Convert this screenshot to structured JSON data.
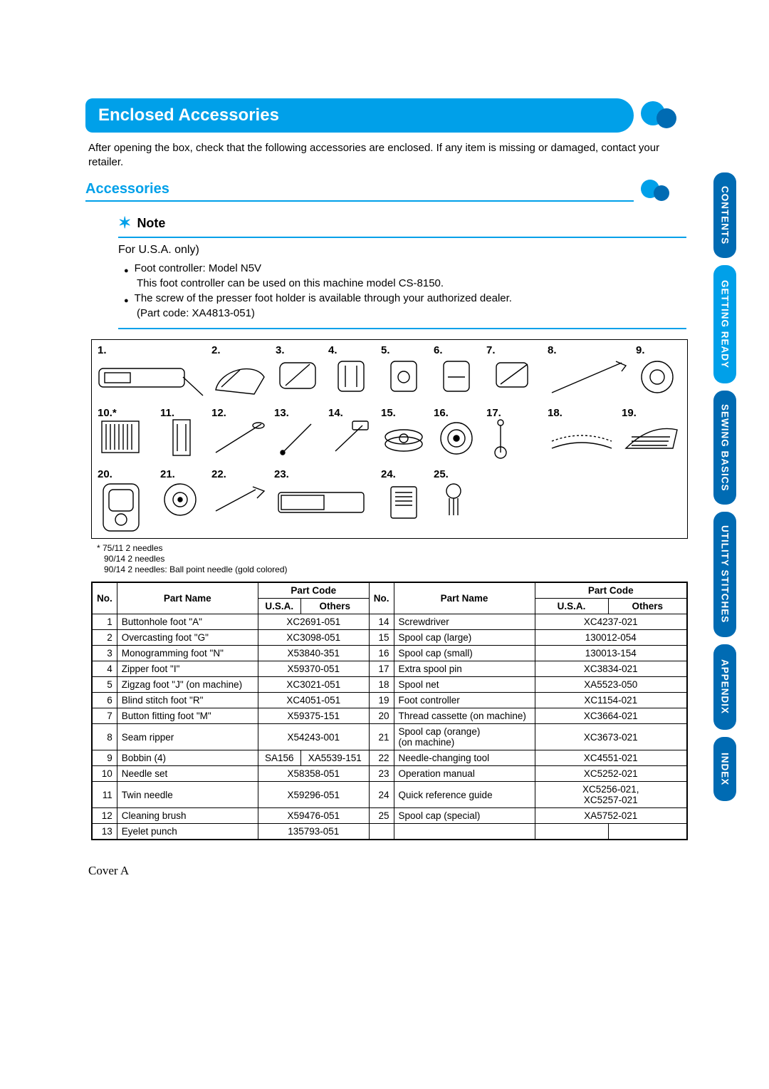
{
  "colors": {
    "accent": "#00a0e9",
    "accent_dark": "#006bb3",
    "text": "#000000",
    "bg": "#ffffff"
  },
  "heading": "Enclosed Accessories",
  "intro": "After opening the box, check that the following accessories are enclosed. If any item is missing or damaged, contact your retailer.",
  "subheading": "Accessories",
  "note": {
    "title": "Note",
    "usa_only": "For U.S.A. only)",
    "bullet1_line1": "Foot controller: Model N5V",
    "bullet1_line2": "This foot controller can be used on this machine model CS-8150.",
    "bullet2_line1": "The screw of the presser foot holder is available through your authorized dealer.",
    "bullet2_line2": "(Part code: XA4813-051)"
  },
  "illus": {
    "numbers_row1": [
      "1.",
      "2.",
      "3.",
      "4.",
      "5.",
      "6.",
      "7.",
      "8.",
      "9."
    ],
    "numbers_row2": [
      "10.*",
      "11.",
      "12.",
      "13.",
      "14.",
      "15.",
      "16.",
      "17.",
      "18.",
      "19."
    ],
    "numbers_row3": [
      "20.",
      "21.",
      "22.",
      "23.",
      "24.",
      "25."
    ],
    "footnote_lines": [
      "* 75/11 2 needles",
      "90/14 2 needles",
      "90/14 2 needles: Ball point needle (gold colored)"
    ]
  },
  "table": {
    "headers": {
      "no": "No.",
      "part_name": "Part Name",
      "part_code": "Part Code",
      "usa": "U.S.A.",
      "others": "Others"
    },
    "left": [
      {
        "no": "1",
        "name": "Buttonhole foot \"A\"",
        "usa": "",
        "others": "",
        "merged": "XC2691-051"
      },
      {
        "no": "2",
        "name": "Overcasting foot \"G\"",
        "merged": "XC3098-051"
      },
      {
        "no": "3",
        "name": "Monogramming foot \"N\"",
        "merged": "X53840-351"
      },
      {
        "no": "4",
        "name": "Zipper foot \"I\"",
        "merged": "X59370-051"
      },
      {
        "no": "5",
        "name": "Zigzag foot \"J\" (on machine)",
        "merged": "XC3021-051"
      },
      {
        "no": "6",
        "name": "Blind stitch foot \"R\"",
        "merged": "XC4051-051"
      },
      {
        "no": "7",
        "name": "Button fitting foot \"M\"",
        "merged": "X59375-151"
      },
      {
        "no": "8",
        "name": "Seam ripper",
        "merged": "X54243-001"
      },
      {
        "no": "9",
        "name": "Bobbin (4)",
        "usa": "SA156",
        "others": "XA5539-151"
      },
      {
        "no": "10",
        "name": "Needle set",
        "merged": "X58358-051"
      },
      {
        "no": "11",
        "name": "Twin needle",
        "merged": "X59296-051"
      },
      {
        "no": "12",
        "name": "Cleaning brush",
        "merged": "X59476-051"
      },
      {
        "no": "13",
        "name": "Eyelet punch",
        "merged": "135793-051"
      }
    ],
    "right": [
      {
        "no": "14",
        "name": "Screwdriver",
        "merged": "XC4237-021"
      },
      {
        "no": "15",
        "name": "Spool cap (large)",
        "merged": "130012-054"
      },
      {
        "no": "16",
        "name": "Spool cap (small)",
        "merged": "130013-154"
      },
      {
        "no": "17",
        "name": "Extra spool pin",
        "merged": "XC3834-021"
      },
      {
        "no": "18",
        "name": "Spool net",
        "merged": "XA5523-050"
      },
      {
        "no": "19",
        "name": "Foot controller",
        "merged": "XC1154-021"
      },
      {
        "no": "20",
        "name": "Thread cassette (on machine)",
        "merged": "XC3664-021"
      },
      {
        "no": "21",
        "name": "Spool cap (orange)\n(on machine)",
        "merged": "XC3673-021"
      },
      {
        "no": "22",
        "name": "Needle-changing tool",
        "merged": "XC4551-021"
      },
      {
        "no": "23",
        "name": "Operation manual",
        "merged": "XC5252-021"
      },
      {
        "no": "24",
        "name": "Quick reference guide",
        "merged": "XC5256-021,\nXC5257-021"
      },
      {
        "no": "25",
        "name": "Spool cap (special)",
        "merged": "XA5752-021"
      }
    ]
  },
  "cover": "Cover A",
  "tabs": {
    "contents": "CONTENTS",
    "ready": "GETTING READY",
    "sewing": "SEWING BASICS",
    "utility": "UTILITY STITCHES",
    "appendix": "APPENDIX",
    "index": "INDEX"
  }
}
